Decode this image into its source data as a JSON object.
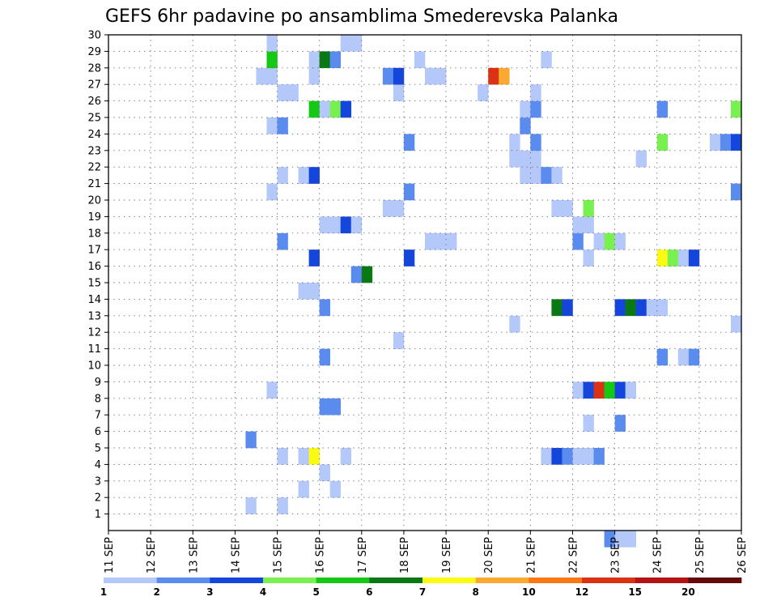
{
  "chart_data": {
    "type": "heatmap",
    "title": "GEFS 6hr padavine po ansamblima Smederevska Palanka",
    "x_tick_labels": [
      "11 SEP",
      "12 SEP",
      "13 SEP",
      "14 SEP",
      "15 SEP",
      "16 SEP",
      "17 SEP",
      "18 SEP",
      "19 SEP",
      "20 SEP",
      "21 SEP",
      "22 SEP",
      "23 SEP",
      "24 SEP",
      "25 SEP",
      "26 SEP"
    ],
    "y_tick_labels": [
      "1",
      "2",
      "3",
      "4",
      "5",
      "6",
      "7",
      "8",
      "9",
      "10",
      "11",
      "12",
      "13",
      "14",
      "15",
      "16",
      "17",
      "18",
      "19",
      "20",
      "21",
      "22",
      "23",
      "24",
      "25",
      "26",
      "27",
      "28",
      "29",
      "30"
    ],
    "x_range": [
      0,
      60
    ],
    "y_range": [
      0,
      30
    ],
    "grid": true,
    "colorbar": {
      "levels": [
        "1",
        "2",
        "3",
        "4",
        "5",
        "6",
        "7",
        "8",
        "10",
        "12",
        "15",
        "20"
      ],
      "colors": [
        "#b4c8fa",
        "#5a8cf0",
        "#1446dc",
        "#78f050",
        "#14c814",
        "#0a7814",
        "#fafa14",
        "#faaa32",
        "#fa7814",
        "#dc3214",
        "#b41414",
        "#640a0a"
      ]
    },
    "cells": [
      [
        13,
        1,
        0
      ],
      [
        16,
        1,
        0
      ],
      [
        18,
        2,
        0
      ],
      [
        21,
        2,
        0
      ],
      [
        20,
        3,
        0
      ],
      [
        16,
        4,
        0
      ],
      [
        18,
        4,
        0
      ],
      [
        19,
        4,
        6
      ],
      [
        22,
        4,
        0
      ],
      [
        41,
        4,
        0
      ],
      [
        42,
        4,
        2
      ],
      [
        43,
        4,
        1
      ],
      [
        44,
        4,
        0
      ],
      [
        45,
        4,
        0
      ],
      [
        46,
        4,
        1
      ],
      [
        13,
        5,
        1
      ],
      [
        45,
        6,
        0
      ],
      [
        48,
        6,
        1
      ],
      [
        20,
        7,
        1
      ],
      [
        21,
        7,
        1
      ],
      [
        15,
        8,
        0
      ],
      [
        44,
        8,
        0
      ],
      [
        45,
        8,
        2
      ],
      [
        46,
        8,
        9
      ],
      [
        47,
        8,
        4
      ],
      [
        48,
        8,
        2
      ],
      [
        49,
        8,
        0
      ],
      [
        20,
        10,
        1
      ],
      [
        52,
        10,
        1
      ],
      [
        54,
        10,
        0
      ],
      [
        55,
        10,
        1
      ],
      [
        27,
        11,
        0
      ],
      [
        38,
        12,
        0
      ],
      [
        59,
        12,
        0
      ],
      [
        20,
        13,
        1
      ],
      [
        42,
        13,
        5
      ],
      [
        43,
        13,
        2
      ],
      [
        48,
        13,
        2
      ],
      [
        49,
        13,
        5
      ],
      [
        50,
        13,
        2
      ],
      [
        51,
        13,
        0
      ],
      [
        52,
        13,
        0
      ],
      [
        18,
        14,
        0
      ],
      [
        19,
        14,
        0
      ],
      [
        23,
        15,
        1
      ],
      [
        24,
        15,
        5
      ],
      [
        19,
        16,
        2
      ],
      [
        28,
        16,
        2
      ],
      [
        45,
        16,
        0
      ],
      [
        52,
        16,
        6
      ],
      [
        53,
        16,
        3
      ],
      [
        54,
        16,
        0
      ],
      [
        55,
        16,
        2
      ],
      [
        16,
        17,
        1
      ],
      [
        30,
        17,
        0
      ],
      [
        31,
        17,
        0
      ],
      [
        32,
        17,
        0
      ],
      [
        44,
        17,
        1
      ],
      [
        46,
        17,
        0
      ],
      [
        47,
        17,
        3
      ],
      [
        48,
        17,
        0
      ],
      [
        20,
        18,
        0
      ],
      [
        21,
        18,
        0
      ],
      [
        22,
        18,
        2
      ],
      [
        23,
        18,
        0
      ],
      [
        44,
        18,
        0
      ],
      [
        45,
        18,
        0
      ],
      [
        26,
        19,
        0
      ],
      [
        27,
        19,
        0
      ],
      [
        42,
        19,
        0
      ],
      [
        43,
        19,
        0
      ],
      [
        45,
        19,
        3
      ],
      [
        15,
        20,
        0
      ],
      [
        28,
        20,
        1
      ],
      [
        59,
        20,
        1
      ],
      [
        16,
        21,
        0
      ],
      [
        18,
        21,
        0
      ],
      [
        19,
        21,
        2
      ],
      [
        39,
        21,
        0
      ],
      [
        40,
        21,
        0
      ],
      [
        41,
        21,
        1
      ],
      [
        42,
        21,
        0
      ],
      [
        38,
        22,
        0
      ],
      [
        39,
        22,
        0
      ],
      [
        40,
        22,
        0
      ],
      [
        50,
        22,
        0
      ],
      [
        28,
        23,
        1
      ],
      [
        38,
        23,
        0
      ],
      [
        40,
        23,
        1
      ],
      [
        52,
        23,
        3
      ],
      [
        57,
        23,
        0
      ],
      [
        58,
        23,
        1
      ],
      [
        59,
        23,
        2
      ],
      [
        15,
        24,
        0
      ],
      [
        16,
        24,
        1
      ],
      [
        39,
        24,
        1
      ],
      [
        19,
        25,
        4
      ],
      [
        20,
        25,
        0
      ],
      [
        21,
        25,
        3
      ],
      [
        22,
        25,
        2
      ],
      [
        39,
        25,
        0
      ],
      [
        40,
        25,
        1
      ],
      [
        52,
        25,
        1
      ],
      [
        59,
        25,
        3
      ],
      [
        16,
        26,
        0
      ],
      [
        17,
        26,
        0
      ],
      [
        27,
        26,
        0
      ],
      [
        35,
        26,
        0
      ],
      [
        40,
        26,
        0
      ],
      [
        14,
        27,
        0
      ],
      [
        15,
        27,
        0
      ],
      [
        19,
        27,
        0
      ],
      [
        26,
        27,
        1
      ],
      [
        27,
        27,
        2
      ],
      [
        30,
        27,
        0
      ],
      [
        31,
        27,
        0
      ],
      [
        36,
        27,
        9
      ],
      [
        37,
        27,
        7
      ],
      [
        15,
        28,
        4
      ],
      [
        19,
        28,
        0
      ],
      [
        20,
        28,
        5
      ],
      [
        21,
        28,
        1
      ],
      [
        29,
        28,
        0
      ],
      [
        41,
        28,
        0
      ],
      [
        15,
        29,
        0
      ],
      [
        22,
        29,
        0
      ],
      [
        23,
        29,
        0
      ],
      [
        47,
        -1,
        1
      ],
      [
        48,
        -1,
        0
      ],
      [
        49,
        -1,
        0
      ]
    ]
  }
}
